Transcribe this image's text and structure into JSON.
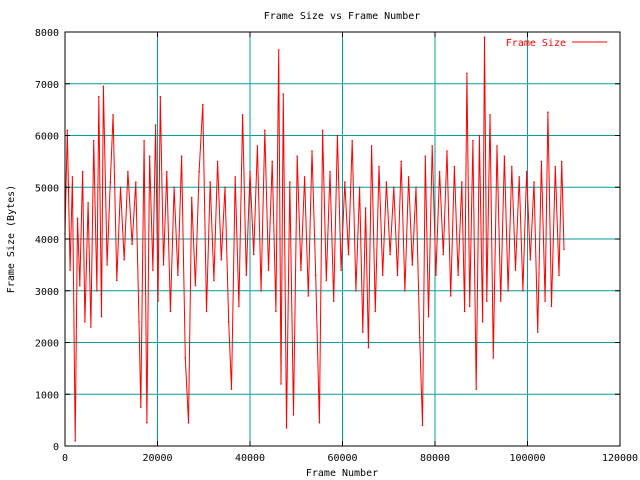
{
  "chart_data": {
    "type": "line",
    "title": "Frame Size vs Frame Number",
    "xlabel": "Frame Number",
    "ylabel": "Frame Size (Bytes)",
    "xlim": [
      0,
      120000
    ],
    "ylim": [
      0,
      8000
    ],
    "xticks": [
      0,
      20000,
      40000,
      60000,
      80000,
      100000,
      120000
    ],
    "yticks": [
      0,
      1000,
      2000,
      3000,
      4000,
      5000,
      6000,
      7000,
      8000
    ],
    "grid": true,
    "legend_position": "top-right",
    "colors": {
      "series": "#ff0000",
      "grid": "#00a0a0",
      "axis": "#000000"
    },
    "series": [
      {
        "name": "Frame Size",
        "x_range": [
          0,
          108000
        ],
        "typical_band": [
          3000,
          5200
        ],
        "points": [
          [
            0,
            4100
          ],
          [
            500,
            6100
          ],
          [
            1100,
            3400
          ],
          [
            1600,
            5200
          ],
          [
            2200,
            100
          ],
          [
            2700,
            4400
          ],
          [
            3200,
            3100
          ],
          [
            3800,
            5300
          ],
          [
            4300,
            2400
          ],
          [
            5000,
            4700
          ],
          [
            5600,
            2300
          ],
          [
            6200,
            5900
          ],
          [
            6900,
            3000
          ],
          [
            7300,
            6750
          ],
          [
            7900,
            2500
          ],
          [
            8300,
            6950
          ],
          [
            9100,
            3500
          ],
          [
            9800,
            5100
          ],
          [
            10400,
            6400
          ],
          [
            11200,
            3200
          ],
          [
            12000,
            5000
          ],
          [
            12800,
            3600
          ],
          [
            13600,
            5300
          ],
          [
            14500,
            3900
          ],
          [
            15300,
            5100
          ],
          [
            16000,
            2400
          ],
          [
            16400,
            750
          ],
          [
            17100,
            5900
          ],
          [
            17700,
            450
          ],
          [
            18300,
            5600
          ],
          [
            19000,
            3400
          ],
          [
            19600,
            6200
          ],
          [
            20100,
            2800
          ],
          [
            20600,
            6750
          ],
          [
            21300,
            3500
          ],
          [
            22000,
            5300
          ],
          [
            22800,
            2600
          ],
          [
            23600,
            5000
          ],
          [
            24400,
            3300
          ],
          [
            25200,
            5600
          ],
          [
            26000,
            1700
          ],
          [
            26700,
            450
          ],
          [
            27400,
            4800
          ],
          [
            28200,
            3100
          ],
          [
            29000,
            5300
          ],
          [
            29800,
            6600
          ],
          [
            30600,
            2600
          ],
          [
            31400,
            5100
          ],
          [
            32200,
            3200
          ],
          [
            33000,
            5500
          ],
          [
            33800,
            3600
          ],
          [
            34600,
            5000
          ],
          [
            35400,
            2400
          ],
          [
            36000,
            1100
          ],
          [
            36800,
            5200
          ],
          [
            37600,
            2700
          ],
          [
            38400,
            6400
          ],
          [
            39200,
            3300
          ],
          [
            40000,
            5300
          ],
          [
            40800,
            3700
          ],
          [
            41600,
            5800
          ],
          [
            42400,
            3000
          ],
          [
            43200,
            6100
          ],
          [
            44000,
            3400
          ],
          [
            44800,
            5500
          ],
          [
            45600,
            2600
          ],
          [
            46200,
            7650
          ],
          [
            46700,
            1200
          ],
          [
            47200,
            6800
          ],
          [
            47900,
            350
          ],
          [
            48600,
            5100
          ],
          [
            49400,
            600
          ],
          [
            50200,
            5600
          ],
          [
            51000,
            3400
          ],
          [
            51800,
            5200
          ],
          [
            52600,
            2900
          ],
          [
            53400,
            5700
          ],
          [
            54200,
            3300
          ],
          [
            55000,
            450
          ],
          [
            55700,
            6100
          ],
          [
            56500,
            3200
          ],
          [
            57300,
            5300
          ],
          [
            58100,
            2800
          ],
          [
            58900,
            6000
          ],
          [
            59700,
            3400
          ],
          [
            60500,
            5100
          ],
          [
            61300,
            3700
          ],
          [
            62100,
            5900
          ],
          [
            62900,
            3000
          ],
          [
            63700,
            5000
          ],
          [
            64400,
            2200
          ],
          [
            65000,
            4600
          ],
          [
            65600,
            1900
          ],
          [
            66300,
            5800
          ],
          [
            67100,
            2600
          ],
          [
            67900,
            5400
          ],
          [
            68700,
            3300
          ],
          [
            69500,
            5100
          ],
          [
            70300,
            3700
          ],
          [
            71100,
            5000
          ],
          [
            71900,
            3300
          ],
          [
            72700,
            5500
          ],
          [
            73500,
            3000
          ],
          [
            74300,
            5200
          ],
          [
            75100,
            3500
          ],
          [
            75900,
            5000
          ],
          [
            76700,
            2100
          ],
          [
            77300,
            400
          ],
          [
            77900,
            5600
          ],
          [
            78600,
            2500
          ],
          [
            79400,
            5800
          ],
          [
            80200,
            3300
          ],
          [
            81000,
            5300
          ],
          [
            81800,
            3700
          ],
          [
            82600,
            5700
          ],
          [
            83400,
            2900
          ],
          [
            84200,
            5400
          ],
          [
            85000,
            3300
          ],
          [
            85800,
            5100
          ],
          [
            86400,
            2600
          ],
          [
            86900,
            7200
          ],
          [
            87500,
            2700
          ],
          [
            88200,
            5900
          ],
          [
            88900,
            1100
          ],
          [
            89600,
            6000
          ],
          [
            90300,
            2400
          ],
          [
            90700,
            7900
          ],
          [
            91200,
            2800
          ],
          [
            91900,
            6400
          ],
          [
            92600,
            1700
          ],
          [
            93400,
            5800
          ],
          [
            94200,
            2800
          ],
          [
            95000,
            5600
          ],
          [
            95800,
            3000
          ],
          [
            96600,
            5400
          ],
          [
            97400,
            3400
          ],
          [
            98200,
            5200
          ],
          [
            99000,
            3000
          ],
          [
            99800,
            5300
          ],
          [
            100600,
            3600
          ],
          [
            101400,
            5100
          ],
          [
            102200,
            2200
          ],
          [
            103000,
            5500
          ],
          [
            103800,
            2800
          ],
          [
            104400,
            6450
          ],
          [
            105200,
            2700
          ],
          [
            106000,
            5400
          ],
          [
            106800,
            3300
          ],
          [
            107400,
            5500
          ],
          [
            107900,
            3800
          ]
        ]
      }
    ]
  }
}
